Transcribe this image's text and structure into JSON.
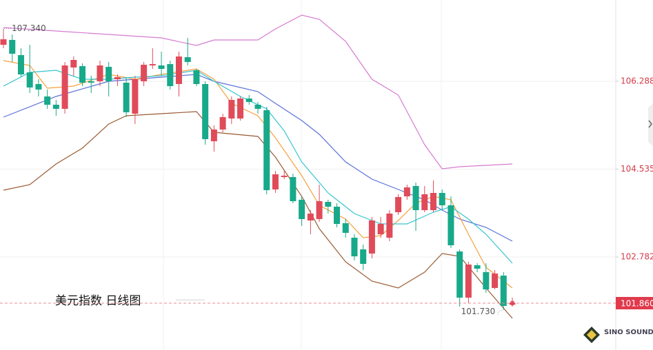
{
  "chart_data": {
    "type": "candlestick",
    "title": "美元指数  日线图",
    "watermark": "SINO SOUND",
    "up_color": "#e04b5a",
    "down_color": "#17a98a",
    "grid": true,
    "ylim": [
      100.925,
      107.91
    ],
    "yticks": [
      102.782,
      104.535,
      106.288
    ],
    "last_price": {
      "value": 101.86,
      "label": "101.860"
    },
    "high_label": {
      "value": 107.34,
      "label": "107.340"
    },
    "low_label": {
      "value": 101.73,
      "label": "101.730"
    },
    "open": [
      107.016,
      107.113,
      106.81,
      106.466,
      106.233,
      105.985,
      105.82,
      105.738,
      106.563,
      106.59,
      106.288,
      106.288,
      106.576,
      106.329,
      106.26,
      105.641,
      106.288,
      106.604,
      106.604,
      106.631,
      106.233,
      106.769,
      106.508,
      106.233,
      105.091,
      105.325,
      105.545,
      105.545,
      105.944,
      105.82,
      105.71,
      104.129,
      104.376,
      104.376,
      103.923,
      103.51,
      103.538,
      103.881,
      103.785,
      103.455,
      103.166,
      102.933,
      102.85,
      103.235,
      103.166,
      103.675,
      103.991,
      104.198,
      103.716,
      103.716,
      104.06,
      103.813,
      102.891,
      101.97,
      102.616,
      102.479,
      102.163,
      102.41,
      101.833
    ],
    "close": [
      107.126,
      106.838,
      106.425,
      106.164,
      106.123,
      105.82,
      105.738,
      106.604,
      106.714,
      106.26,
      106.26,
      106.604,
      106.288,
      106.37,
      105.669,
      106.329,
      106.618,
      106.631,
      106.535,
      106.191,
      106.783,
      106.673,
      106.233,
      105.133,
      105.325,
      105.573,
      105.916,
      105.944,
      105.875,
      105.738,
      104.115,
      104.431,
      104.404,
      103.895,
      103.538,
      103.648,
      103.895,
      103.785,
      103.441,
      103.263,
      102.795,
      102.644,
      103.51,
      103.441,
      103.648,
      103.978,
      104.17,
      103.716,
      104.033,
      104.06,
      103.813,
      103.015,
      101.97,
      102.63,
      102.548,
      102.135,
      102.451,
      101.805,
      101.86
    ],
    "high": [
      107.34,
      107.223,
      106.948,
      107.016,
      106.329,
      106.123,
      105.916,
      106.673,
      106.783,
      106.645,
      106.398,
      106.7,
      106.673,
      106.425,
      106.37,
      106.398,
      106.673,
      106.948,
      106.879,
      106.7,
      106.879,
      107.154,
      106.535,
      106.288,
      105.408,
      105.641,
      105.985,
      105.985,
      106.013,
      105.875,
      105.779,
      104.5,
      104.5,
      104.445,
      103.991,
      103.716,
      104.225,
      103.923,
      103.854,
      103.538,
      103.235,
      103.029,
      103.579,
      103.579,
      103.716,
      104.033,
      104.225,
      104.266,
      104.198,
      104.308,
      104.129,
      103.991,
      102.933,
      102.685,
      102.658,
      102.658,
      102.52,
      102.479,
      101.97
    ],
    "low": [
      106.948,
      106.673,
      106.37,
      106.054,
      105.985,
      105.738,
      105.6,
      105.641,
      106.398,
      106.191,
      106.054,
      106.191,
      105.985,
      106.191,
      105.573,
      105.435,
      106.191,
      106.535,
      106.398,
      106.123,
      105.985,
      106.604,
      106.191,
      105.023,
      104.885,
      105.27,
      105.435,
      105.504,
      105.82,
      105.641,
      104.033,
      104.06,
      104.335,
      103.854,
      103.4,
      103.235,
      103.483,
      103.648,
      103.373,
      103.166,
      102.713,
      102.52,
      102.754,
      103.166,
      103.098,
      103.62,
      103.923,
      103.304,
      103.675,
      103.675,
      103.716,
      102.96,
      101.791,
      101.86,
      102.479,
      102.066,
      102.135,
      101.73,
      101.791
    ],
    "lines": [
      {
        "color": "#d57ad0",
        "x": [
          0,
          6,
          12,
          18,
          22,
          24,
          29,
          31,
          34,
          36,
          39,
          42,
          45,
          48,
          50,
          52,
          55,
          58
        ],
        "values": [
          107.36,
          107.291,
          107.223,
          107.154,
          107.003,
          107.113,
          107.113,
          107.333,
          107.608,
          107.525,
          107.085,
          106.329,
          106.013,
          105.023,
          104.541,
          104.583,
          104.61,
          104.638
        ]
      },
      {
        "color": "#5a6fd6",
        "x": [
          0,
          6,
          12,
          18,
          22,
          24,
          29,
          31,
          34,
          36,
          39,
          42,
          45,
          48,
          50,
          52,
          55,
          58
        ],
        "values": [
          105.573,
          105.985,
          106.288,
          106.37,
          106.425,
          106.288,
          106.081,
          105.848,
          105.504,
          105.229,
          104.679,
          104.335,
          104.129,
          103.923,
          103.716,
          103.538,
          103.373,
          103.098
        ]
      },
      {
        "color": "#9a5a32",
        "x": [
          0,
          3,
          6,
          9,
          12,
          14,
          18,
          22,
          24,
          29,
          31,
          34,
          36,
          39,
          42,
          45,
          48,
          50,
          52,
          55,
          58
        ],
        "values": [
          104.115,
          104.225,
          104.638,
          104.954,
          105.435,
          105.6,
          105.641,
          105.683,
          105.27,
          105.188,
          104.775,
          103.991,
          103.345,
          102.685,
          102.3,
          102.163,
          102.479,
          102.85,
          102.795,
          102.163,
          101.558
        ]
      },
      {
        "color": "#f5a03c",
        "x": [
          0,
          3,
          5,
          8,
          12,
          15,
          18,
          22,
          24,
          26,
          29,
          31,
          34,
          36,
          39,
          41,
          43,
          45,
          47,
          49,
          51,
          53,
          55,
          57,
          58
        ],
        "values": [
          106.7,
          106.604,
          106.15,
          106.191,
          106.425,
          106.329,
          106.425,
          106.535,
          106.329,
          105.848,
          105.6,
          105.16,
          104.404,
          103.813,
          103.538,
          103.166,
          103.208,
          103.51,
          103.854,
          103.991,
          103.923,
          103.235,
          102.575,
          102.3,
          102.163
        ]
      },
      {
        "color": "#35c4d0",
        "x": [
          0,
          3,
          6,
          9,
          12,
          15,
          18,
          22,
          24,
          27,
          30,
          32,
          34,
          37,
          40,
          43,
          46,
          49,
          51,
          53,
          55,
          58
        ],
        "values": [
          106.191,
          106.466,
          106.508,
          106.329,
          106.329,
          106.37,
          106.398,
          106.508,
          106.288,
          105.985,
          105.738,
          105.298,
          104.679,
          104.06,
          103.648,
          103.441,
          103.441,
          103.675,
          103.785,
          103.538,
          103.235,
          102.658
        ]
      }
    ]
  }
}
